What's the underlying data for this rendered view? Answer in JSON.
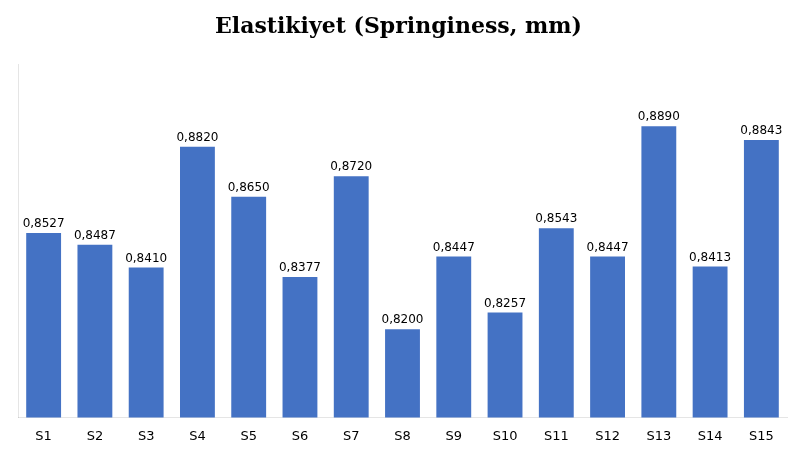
{
  "chart_data": {
    "type": "bar",
    "title": "Elastikiyet (Springiness, mm)",
    "categories": [
      "S1",
      "S2",
      "S3",
      "S4",
      "S5",
      "S6",
      "S7",
      "S8",
      "S9",
      "S10",
      "S11",
      "S12",
      "S13",
      "S14",
      "S15"
    ],
    "values": [
      0.8527,
      0.8487,
      0.841,
      0.882,
      0.865,
      0.8377,
      0.872,
      0.82,
      0.8447,
      0.8257,
      0.8543,
      0.8447,
      0.889,
      0.8413,
      0.8843
    ],
    "value_labels": [
      "0,8527",
      "0,8487",
      "0,8410",
      "0,8820",
      "0,8650",
      "0,8377",
      "0,8720",
      "0,8200",
      "0,8447",
      "0,8257",
      "0,8543",
      "0,8447",
      "0,8890",
      "0,8413",
      "0,8843"
    ],
    "data_labels": true,
    "color": "#4472C4",
    "ylim": [
      0.79,
      0.91
    ],
    "tick_labels": "x",
    "grid": false
  }
}
